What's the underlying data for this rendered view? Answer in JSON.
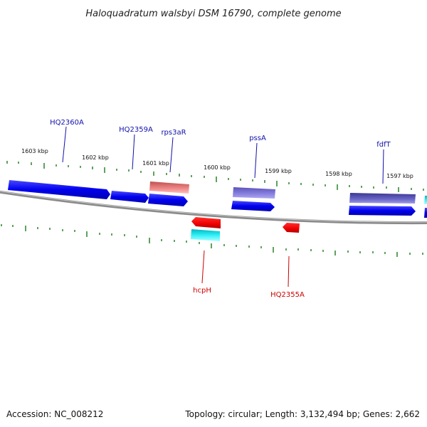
{
  "title": "Haloquadratum walsbyi DSM 16790, complete genome",
  "footer": {
    "accession": "Accession: NC_008212",
    "summary": "Topology: circular; Length: 3,132,494 bp; Genes: 2,662"
  },
  "colors": {
    "backbone": "#8a8a8a",
    "tick": "#1a7a1a",
    "label_forward": "#1010aa",
    "label_reverse": "#cc0000",
    "gene_blue": "#0000ee",
    "gene_lavender": "#7b72d6",
    "gene_slate": "#5e5ab8",
    "gene_salmon": "#e87a7a",
    "gene_red": "#ee0000",
    "gene_cyan": "#00e5ee"
  },
  "scale_labels": [
    "1603 kbp",
    "1602 kbp",
    "1601 kbp",
    "1600 kbp",
    "1599 kbp",
    "1598 kbp",
    "1597 kbp"
  ],
  "gene_labels": {
    "forward": [
      "HQ2360A",
      "HQ2359A",
      "rps3aR",
      "pssA",
      "fdfT"
    ],
    "reverse": [
      "hcpH",
      "HQ2355A"
    ]
  }
}
